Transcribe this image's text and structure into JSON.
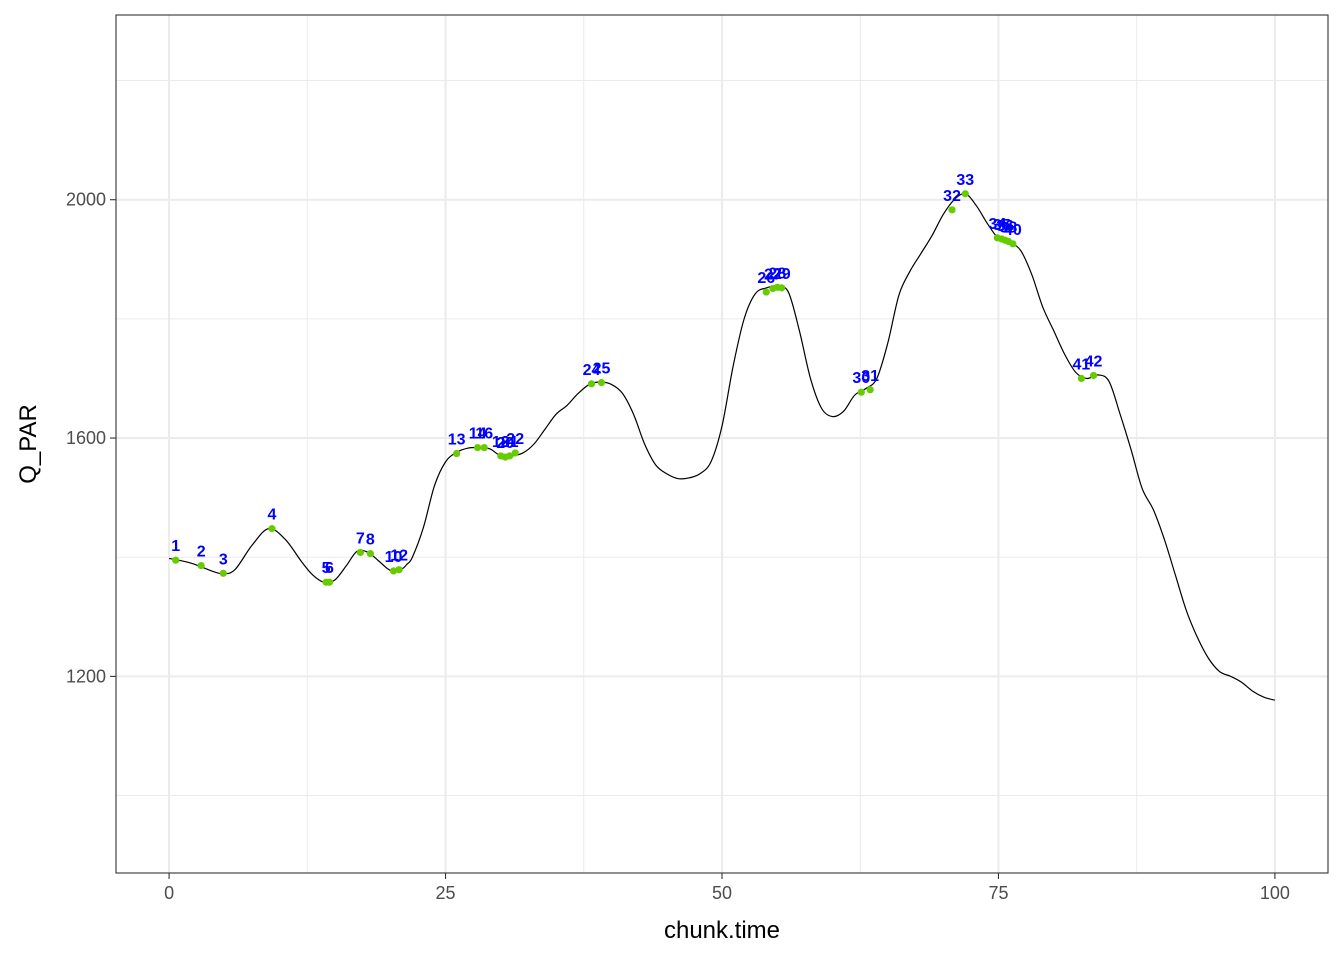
{
  "colors": {
    "line": "#000000",
    "point": "#66cc00",
    "label": "#0000ff",
    "grid": "#ebebeb",
    "panel_border": "#333333",
    "background": "#ffffff"
  },
  "chart_data": {
    "type": "line",
    "title": "",
    "xlabel": "chunk.time",
    "ylabel": "Q_PAR",
    "xlim": [
      -4.8,
      104.8
    ],
    "ylim": [
      870,
      2310
    ],
    "x_ticks": [
      0,
      25,
      50,
      75,
      100
    ],
    "x_tick_labels": [
      "0",
      "25",
      "50",
      "75",
      "100"
    ],
    "y_ticks": [
      1200,
      1600,
      2000
    ],
    "y_tick_labels": [
      "1200",
      "1600",
      "2000"
    ],
    "x_minor": [
      12.5,
      37.5,
      62.5,
      87.5
    ],
    "y_minor": [
      1000,
      1400,
      1800,
      2200
    ],
    "grid": true,
    "legend": "none",
    "series": [
      {
        "x": [
          0,
          2,
          4,
          5,
          6,
          7.5,
          9,
          10.5,
          12,
          13,
          14,
          15,
          16,
          17,
          18,
          19,
          20,
          21,
          21.5,
          22,
          23,
          24,
          25,
          26,
          27,
          28,
          29,
          30,
          31,
          32,
          33,
          34,
          35,
          36,
          37,
          38,
          39,
          40,
          41,
          42,
          43,
          44,
          45,
          46,
          47,
          48,
          49,
          50,
          51,
          52,
          53,
          54,
          55,
          56,
          57,
          58,
          59,
          60,
          61,
          62,
          63,
          64,
          65,
          66,
          67,
          68,
          69,
          70,
          71,
          72,
          73,
          74,
          75,
          76,
          77,
          78,
          79,
          80,
          81,
          82,
          83,
          84,
          85,
          86,
          87,
          88,
          89,
          90,
          91,
          92,
          93,
          94,
          95,
          96,
          97,
          98,
          99,
          100
        ],
        "y": [
          1398,
          1390,
          1376,
          1372,
          1380,
          1420,
          1448,
          1430,
          1392,
          1370,
          1358,
          1362,
          1385,
          1410,
          1408,
          1393,
          1378,
          1380,
          1388,
          1400,
          1450,
          1520,
          1560,
          1576,
          1583,
          1584,
          1582,
          1570,
          1570,
          1575,
          1590,
          1615,
          1640,
          1655,
          1675,
          1690,
          1694,
          1690,
          1675,
          1640,
          1590,
          1555,
          1540,
          1532,
          1533,
          1540,
          1560,
          1620,
          1720,
          1800,
          1842,
          1852,
          1855,
          1845,
          1780,
          1700,
          1650,
          1636,
          1645,
          1672,
          1683,
          1700,
          1760,
          1840,
          1880,
          1910,
          1940,
          1975,
          2000,
          2010,
          1990,
          1960,
          1935,
          1928,
          1915,
          1875,
          1820,
          1780,
          1740,
          1710,
          1700,
          1706,
          1695,
          1640,
          1580,
          1515,
          1480,
          1430,
          1370,
          1310,
          1265,
          1230,
          1208,
          1200,
          1190,
          1175,
          1165,
          1160
        ]
      }
    ],
    "points": [
      {
        "label": "1",
        "x": 0.6,
        "y": 1395
      },
      {
        "label": "2",
        "x": 2.9,
        "y": 1386
      },
      {
        "label": "3",
        "x": 4.9,
        "y": 1373
      },
      {
        "label": "4",
        "x": 9.3,
        "y": 1448
      },
      {
        "label": "5",
        "x": 14.2,
        "y": 1358
      },
      {
        "label": "6",
        "x": 14.5,
        "y": 1358
      },
      {
        "label": "7",
        "x": 17.3,
        "y": 1408
      },
      {
        "label": "8",
        "x": 18.2,
        "y": 1406
      },
      {
        "label": "10",
        "x": 20.3,
        "y": 1377
      },
      {
        "label": "12",
        "x": 20.8,
        "y": 1379
      },
      {
        "label": "13",
        "x": 26.0,
        "y": 1574
      },
      {
        "label": "14",
        "x": 27.9,
        "y": 1584
      },
      {
        "label": "16",
        "x": 28.5,
        "y": 1584
      },
      {
        "label": "18",
        "x": 30.0,
        "y": 1570
      },
      {
        "label": "20",
        "x": 30.4,
        "y": 1568
      },
      {
        "label": "21",
        "x": 30.8,
        "y": 1570
      },
      {
        "label": "22",
        "x": 31.3,
        "y": 1575
      },
      {
        "label": "24",
        "x": 38.2,
        "y": 1691
      },
      {
        "label": "25",
        "x": 39.1,
        "y": 1693
      },
      {
        "label": "26",
        "x": 54.0,
        "y": 1845
      },
      {
        "label": "27",
        "x": 54.6,
        "y": 1851
      },
      {
        "label": "28",
        "x": 55.0,
        "y": 1853
      },
      {
        "label": "29",
        "x": 55.4,
        "y": 1852
      },
      {
        "label": "30",
        "x": 62.6,
        "y": 1677
      },
      {
        "label": "31",
        "x": 63.4,
        "y": 1681
      },
      {
        "label": "32",
        "x": 70.8,
        "y": 1983
      },
      {
        "label": "33",
        "x": 72.0,
        "y": 2010
      },
      {
        "label": "34",
        "x": 74.9,
        "y": 1936
      },
      {
        "label": "35",
        "x": 75.3,
        "y": 1934
      },
      {
        "label": "36",
        "x": 75.6,
        "y": 1932
      },
      {
        "label": "38",
        "x": 75.9,
        "y": 1930
      },
      {
        "label": "40",
        "x": 76.3,
        "y": 1926
      },
      {
        "label": "41",
        "x": 82.5,
        "y": 1700
      },
      {
        "label": "42",
        "x": 83.6,
        "y": 1705
      }
    ]
  }
}
